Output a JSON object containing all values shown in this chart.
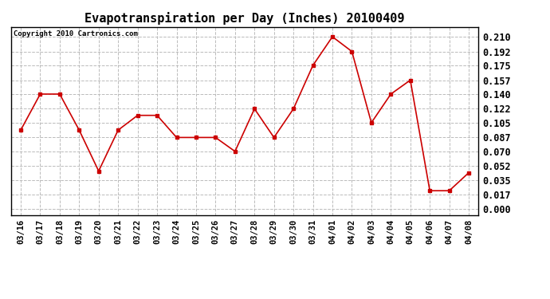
{
  "title": "Evapotranspiration per Day (Inches) 20100409",
  "copyright_text": "Copyright 2010 Cartronics.com",
  "x_labels": [
    "03/16",
    "03/17",
    "03/18",
    "03/19",
    "03/20",
    "03/21",
    "03/22",
    "03/23",
    "03/24",
    "03/25",
    "03/26",
    "03/27",
    "03/28",
    "03/29",
    "03/30",
    "03/31",
    "04/01",
    "04/02",
    "04/03",
    "04/04",
    "04/05",
    "04/06",
    "04/07",
    "04/08"
  ],
  "y_values": [
    0.096,
    0.14,
    0.14,
    0.096,
    0.046,
    0.096,
    0.114,
    0.114,
    0.087,
    0.087,
    0.087,
    0.07,
    0.122,
    0.087,
    0.122,
    0.175,
    0.21,
    0.192,
    0.105,
    0.14,
    0.157,
    0.022,
    0.022,
    0.044
  ],
  "line_color": "#cc0000",
  "marker": "s",
  "marker_size": 3,
  "line_width": 1.2,
  "yticks": [
    0.0,
    0.017,
    0.035,
    0.052,
    0.07,
    0.087,
    0.105,
    0.122,
    0.14,
    0.157,
    0.175,
    0.192,
    0.21
  ],
  "ylim": [
    -0.008,
    0.222
  ],
  "background_color": "#ffffff",
  "plot_bg_color": "#ffffff",
  "grid_color": "#bbbbbb",
  "title_fontsize": 11,
  "copyright_fontsize": 6.5,
  "tick_fontsize": 7.5,
  "ytick_fontsize": 8.5
}
